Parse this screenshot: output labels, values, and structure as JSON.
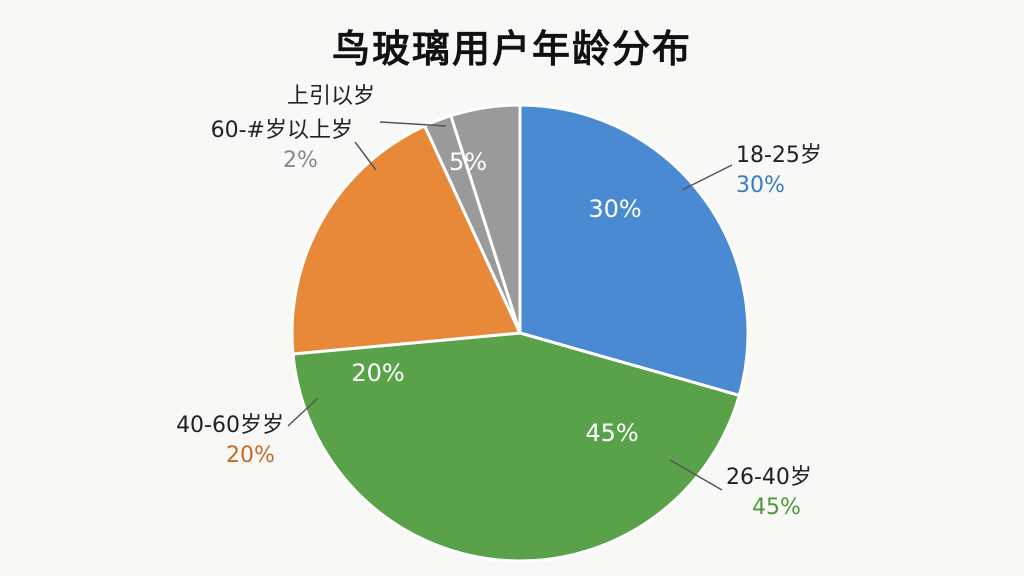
{
  "title": "鸟玻璃用户年龄分布",
  "chart_data": {
    "type": "pie",
    "title": "鸟玻璃用户年龄分布",
    "slices": [
      {
        "name": "18-25岁",
        "value": 30,
        "label": "30%",
        "ext_pct": "30%",
        "color": "#4a8ad2"
      },
      {
        "name": "26-40岁",
        "value": 45,
        "label": "45%",
        "ext_pct": "45%",
        "color": "#5aa24a"
      },
      {
        "name": "40-60岁岁",
        "value": 20,
        "label": "20%",
        "ext_pct": "20%",
        "color": "#e8893a"
      },
      {
        "name": "60-#岁以上岁",
        "value": 2,
        "label": "",
        "ext_pct": "2%",
        "color": "#9a9a9a"
      },
      {
        "name": "上引以岁",
        "value": 5,
        "label": "5%",
        "ext_pct": "",
        "color": "#9a9a9a"
      }
    ]
  }
}
